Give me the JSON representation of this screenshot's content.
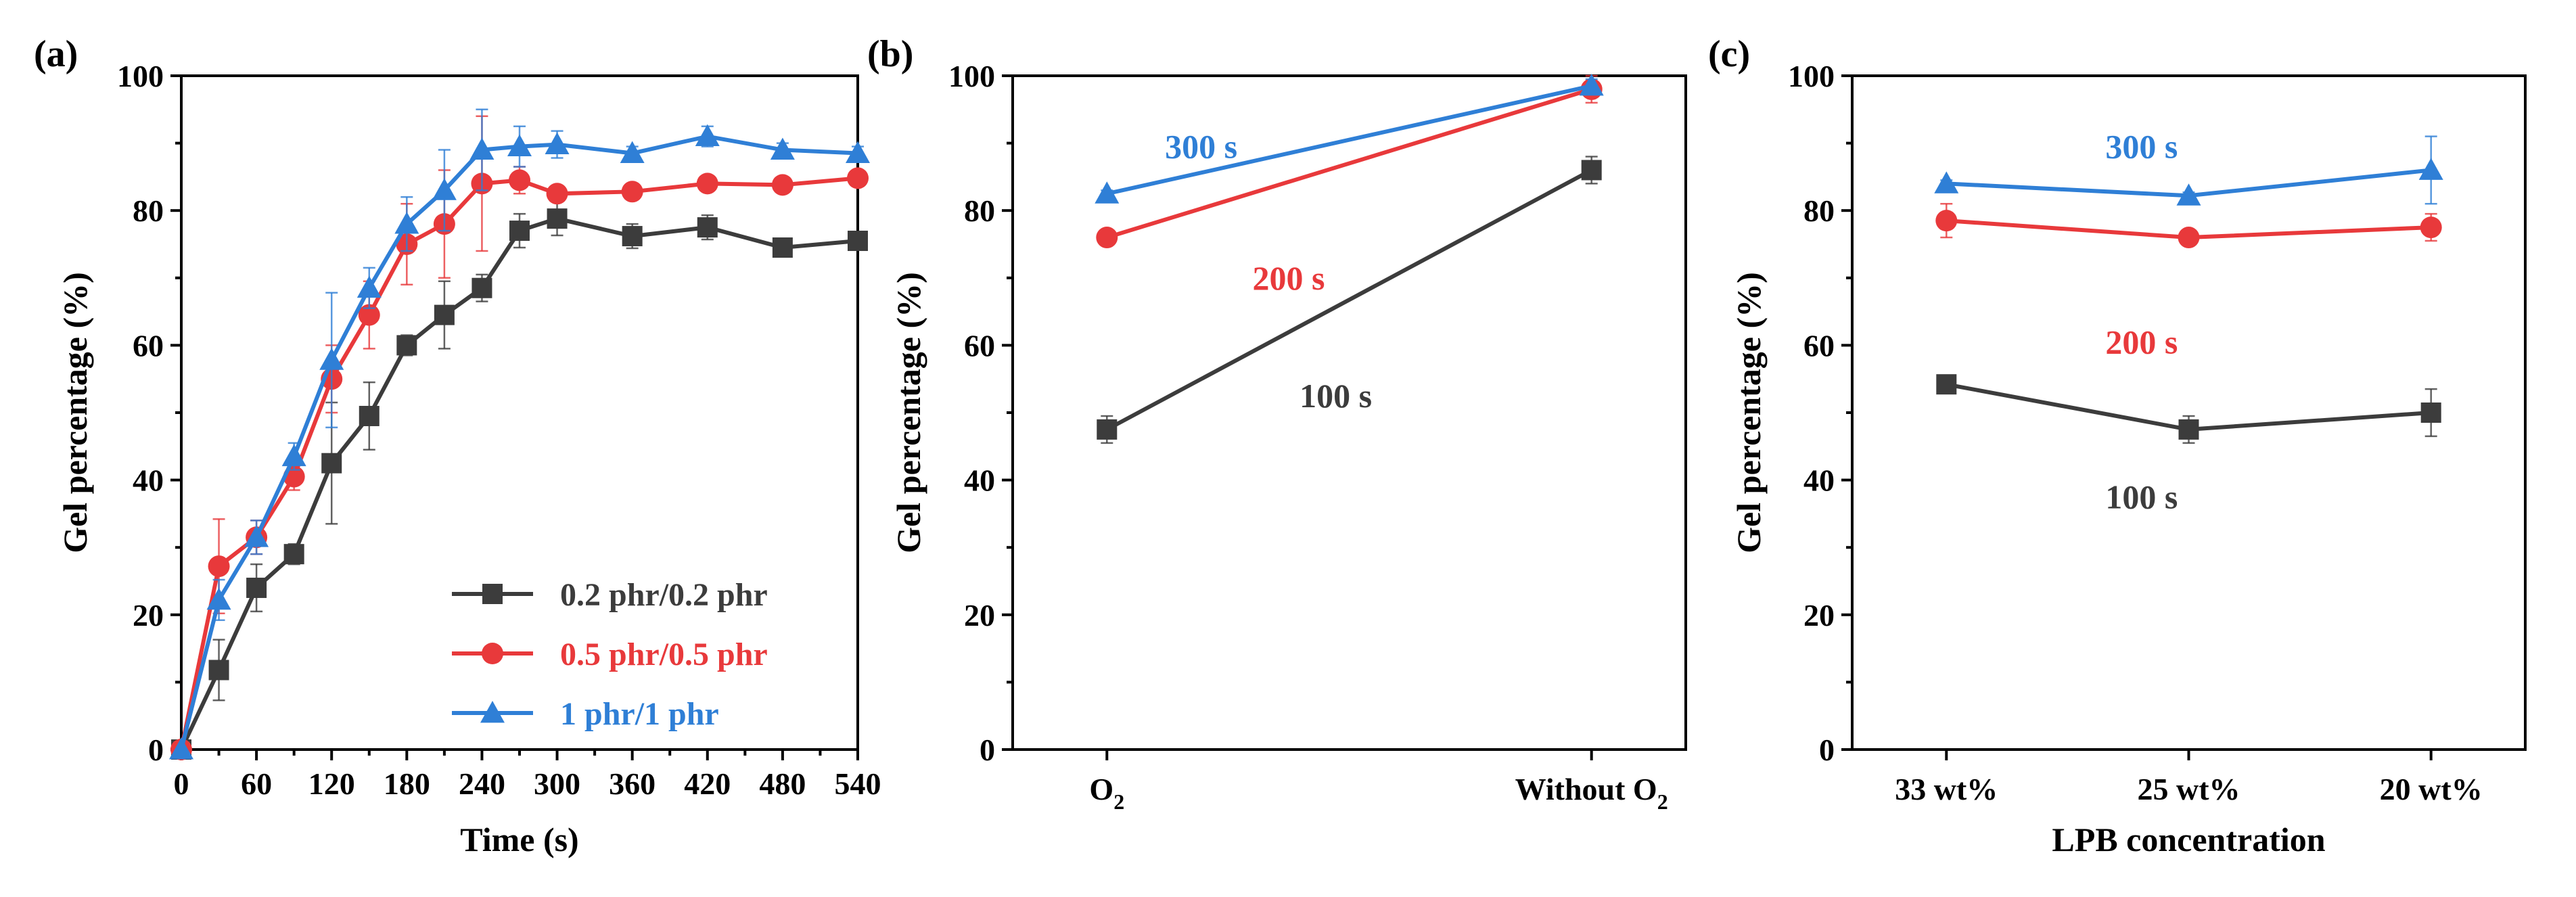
{
  "colors": {
    "black": "#3c3c3c",
    "red": "#e8393b",
    "blue": "#2f7fd6"
  },
  "chart_data": [
    {
      "type": "line",
      "panel_label": "(a)",
      "xlabel": "Time (s)",
      "ylabel": "Gel percentage (%)",
      "xlim": [
        0,
        540
      ],
      "ylim": [
        0,
        100
      ],
      "xticks": [
        0,
        60,
        120,
        180,
        240,
        300,
        360,
        420,
        480,
        540
      ],
      "yticks": [
        0,
        20,
        40,
        60,
        80,
        100
      ],
      "legend_position": "bottom-right",
      "series": [
        {
          "name": "0.2 phr/0.2 phr",
          "color": "#3c3c3c",
          "marker": "square",
          "x": [
            0,
            30,
            60,
            90,
            120,
            150,
            180,
            210,
            240,
            270,
            300,
            360,
            420,
            480,
            540
          ],
          "y": [
            0,
            11.8,
            24,
            29,
            42.5,
            49.5,
            60,
            64.5,
            68.5,
            77,
            78.8,
            76.2,
            77.5,
            74.5,
            75.5
          ],
          "err": [
            0,
            4.5,
            3.5,
            1.5,
            9,
            5,
            1.5,
            5,
            2,
            2.5,
            2.5,
            1.8,
            1.8,
            1,
            1.2
          ]
        },
        {
          "name": "0.5 phr/0.5 phr",
          "color": "#e8393b",
          "marker": "circle",
          "x": [
            0,
            30,
            60,
            90,
            120,
            150,
            180,
            210,
            240,
            270,
            300,
            360,
            420,
            480,
            540
          ],
          "y": [
            0,
            27.2,
            31.5,
            40.5,
            55,
            64.5,
            75,
            78,
            84,
            84.5,
            82.5,
            82.8,
            84,
            83.8,
            84.8
          ],
          "err": [
            0,
            7,
            2.5,
            2,
            5,
            5,
            6,
            8,
            10,
            2,
            1,
            1,
            1,
            1,
            1
          ]
        },
        {
          "name": "1 phr/1 phr",
          "color": "#2f7fd6",
          "marker": "triangle",
          "x": [
            0,
            30,
            60,
            90,
            120,
            150,
            180,
            210,
            240,
            270,
            300,
            360,
            420,
            480,
            540
          ],
          "y": [
            0,
            22.2,
            31.5,
            43.5,
            57.8,
            68.5,
            78,
            83,
            89,
            89.5,
            89.8,
            88.5,
            91,
            89,
            88.5
          ],
          "err": [
            0,
            3,
            2.5,
            2,
            10,
            3,
            4,
            6,
            6,
            3,
            2,
            1,
            1.5,
            1,
            1
          ]
        }
      ]
    },
    {
      "type": "line",
      "panel_label": "(b)",
      "xlabel": "",
      "ylabel": "Gel percentage (%)",
      "categories": [
        {
          "main": "O",
          "sub": "2"
        },
        {
          "main": "Without O",
          "sub": "2"
        }
      ],
      "ylim": [
        0,
        100
      ],
      "yticks": [
        0,
        20,
        40,
        60,
        80,
        100
      ],
      "series": [
        {
          "name": "100 s",
          "color": "#3c3c3c",
          "marker": "square",
          "values": [
            47.5,
            86
          ],
          "err": [
            2,
            2
          ]
        },
        {
          "name": "200 s",
          "color": "#e8393b",
          "marker": "circle",
          "values": [
            76,
            98
          ],
          "err": [
            0.5,
            2
          ]
        },
        {
          "name": "300 s",
          "color": "#2f7fd6",
          "marker": "triangle",
          "values": [
            82.5,
            98.5
          ],
          "err": [
            0.5,
            1
          ]
        }
      ],
      "annotations": [
        {
          "text": "300 s",
          "color": "#2f7fd6"
        },
        {
          "text": "200 s",
          "color": "#e8393b"
        },
        {
          "text": "100 s",
          "color": "#3c3c3c"
        }
      ]
    },
    {
      "type": "line",
      "panel_label": "(c)",
      "xlabel": "LPB concentration",
      "ylabel": "Gel percentage (%)",
      "categories": [
        "33 wt%",
        "25 wt%",
        "20 wt%"
      ],
      "ylim": [
        0,
        100
      ],
      "yticks": [
        0,
        20,
        40,
        60,
        80,
        100
      ],
      "series": [
        {
          "name": "100 s",
          "color": "#3c3c3c",
          "marker": "square",
          "values": [
            54.2,
            47.5,
            50
          ],
          "err": [
            0.5,
            2,
            3.5
          ]
        },
        {
          "name": "200 s",
          "color": "#e8393b",
          "marker": "circle",
          "values": [
            78.5,
            76,
            77.5
          ],
          "err": [
            2.5,
            0.5,
            2
          ]
        },
        {
          "name": "300 s",
          "color": "#2f7fd6",
          "marker": "triangle",
          "values": [
            84,
            82.2,
            86
          ],
          "err": [
            0.5,
            0.5,
            5
          ]
        }
      ],
      "annotations": [
        {
          "text": "300 s",
          "color": "#2f7fd6"
        },
        {
          "text": "200 s",
          "color": "#e8393b"
        },
        {
          "text": "100 s",
          "color": "#3c3c3c"
        }
      ]
    }
  ]
}
